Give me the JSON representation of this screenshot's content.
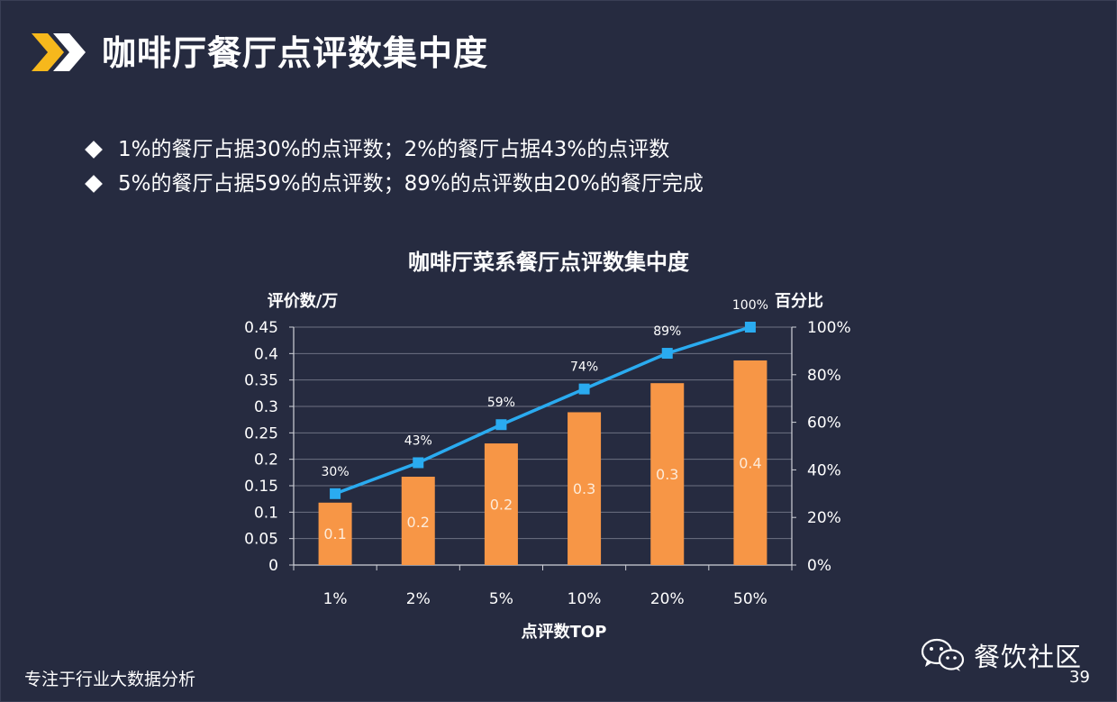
{
  "slide": {
    "title": "咖啡厅餐厅点评数集中度",
    "bullets": [
      "1%的餐厅占据30%的点评数；2%的餐厅占据43%的点评数",
      "5%的餐厅占据59%的点评数；89%的点评数由20%的餐厅完成"
    ],
    "footer_left": "专注于行业大数据分析",
    "brand": "餐饮社区",
    "page_number": "39"
  },
  "colors": {
    "background": "#262b40",
    "bar": "#f79646",
    "line": "#2aabf0",
    "accent_yellow": "#f6b81c",
    "grid": "#6d7182"
  },
  "chart_data": {
    "type": "bar",
    "title": "咖啡厅菜系餐厅点评数集中度",
    "xlabel": "点评数TOP",
    "ylabel": "评价数/万",
    "y2label": "百分比",
    "categories": [
      "1%",
      "2%",
      "5%",
      "10%",
      "20%",
      "50%"
    ],
    "series": [
      {
        "name": "评价数/万",
        "type": "bar",
        "axis": "left",
        "values": [
          0.118,
          0.167,
          0.23,
          0.289,
          0.344,
          0.387
        ],
        "labels": [
          "0.1",
          "0.2",
          "0.2",
          "0.3",
          "0.3",
          "0.4"
        ]
      },
      {
        "name": "百分比",
        "type": "line",
        "axis": "right",
        "values": [
          30,
          43,
          59,
          74,
          89,
          100
        ],
        "labels": [
          "30%",
          "43%",
          "59%",
          "74%",
          "89%",
          "100%"
        ]
      }
    ],
    "ylim": [
      0,
      0.45
    ],
    "yticks": [
      "0",
      "0.05",
      "0.1",
      "0.15",
      "0.2",
      "0.25",
      "0.3",
      "0.35",
      "0.4",
      "0.45"
    ],
    "y2lim": [
      0,
      100
    ],
    "y2ticks": [
      "0%",
      "20%",
      "40%",
      "60%",
      "80%",
      "100%"
    ],
    "grid": true
  }
}
